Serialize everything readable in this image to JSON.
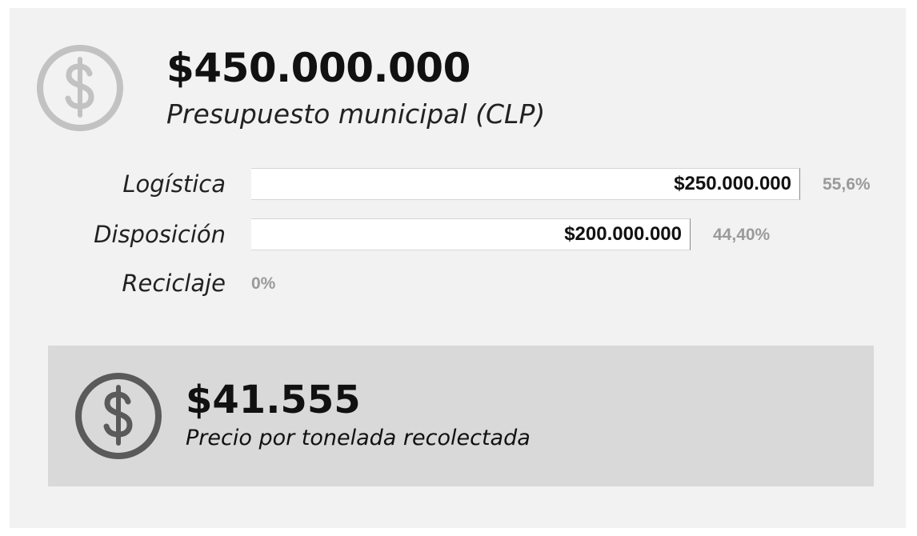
{
  "budget": {
    "amount": "$450.000.000",
    "caption": "Presupuesto municipal (CLP)",
    "icon": "dollar-coin-icon"
  },
  "chart_data": {
    "type": "bar",
    "orientation": "horizontal",
    "categories": [
      "Logística",
      "Disposición",
      "Reciclaje"
    ],
    "values": [
      250000000,
      200000000,
      0
    ],
    "value_labels": [
      "$250.000.000",
      "$200.000.000",
      ""
    ],
    "percent_labels": [
      "55,6%",
      "44,40%",
      "0%"
    ],
    "xlim": [
      0,
      250000000
    ],
    "grid": false,
    "legend": "none"
  },
  "price_per_ton": {
    "amount": "$41.555",
    "caption": "Precio por tonelada recolectada",
    "icon": "dollar-coin-icon"
  },
  "colors": {
    "card_background": "#f2f2f2",
    "bottom_box_background": "#d9d9d9",
    "bar_fill": "#ffffff",
    "top_icon": "#c2c2c2",
    "bottom_icon": "#5a5a5a",
    "percent_text": "#9a9a9a"
  }
}
